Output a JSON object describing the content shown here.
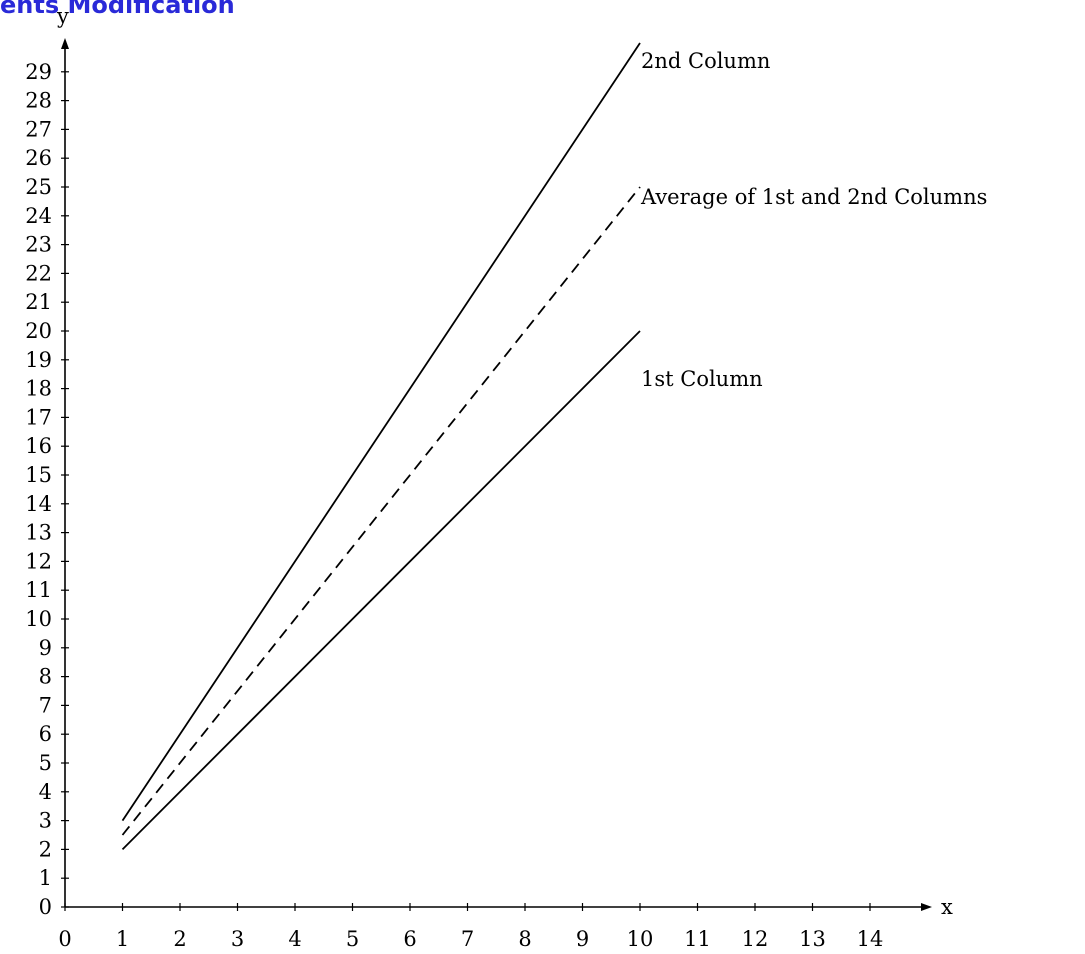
{
  "header": {
    "title_fragment": "ents Modification"
  },
  "chart_data": {
    "type": "line",
    "title": "",
    "xlabel": "x",
    "ylabel": "y",
    "xlim": [
      0,
      14
    ],
    "ylim": [
      0,
      29
    ],
    "x_ticks": [
      0,
      1,
      2,
      3,
      4,
      5,
      6,
      7,
      8,
      9,
      10,
      11,
      12,
      13,
      14
    ],
    "y_ticks": [
      0,
      1,
      2,
      3,
      4,
      5,
      6,
      7,
      8,
      9,
      10,
      11,
      12,
      13,
      14,
      15,
      16,
      17,
      18,
      19,
      20,
      21,
      22,
      23,
      24,
      25,
      26,
      27,
      28,
      29
    ],
    "grid": false,
    "legend": "none",
    "series": [
      {
        "name": "2nd Column",
        "style": "solid",
        "color": "#000000",
        "x": [
          1,
          10
        ],
        "y": [
          3,
          30
        ]
      },
      {
        "name": "Average of 1st and 2nd Columns",
        "style": "dashed",
        "color": "#000000",
        "x": [
          1,
          10
        ],
        "y": [
          2.5,
          25
        ]
      },
      {
        "name": "1st Column",
        "style": "solid",
        "color": "#000000",
        "x": [
          1,
          10
        ],
        "y": [
          2,
          20
        ]
      }
    ]
  }
}
